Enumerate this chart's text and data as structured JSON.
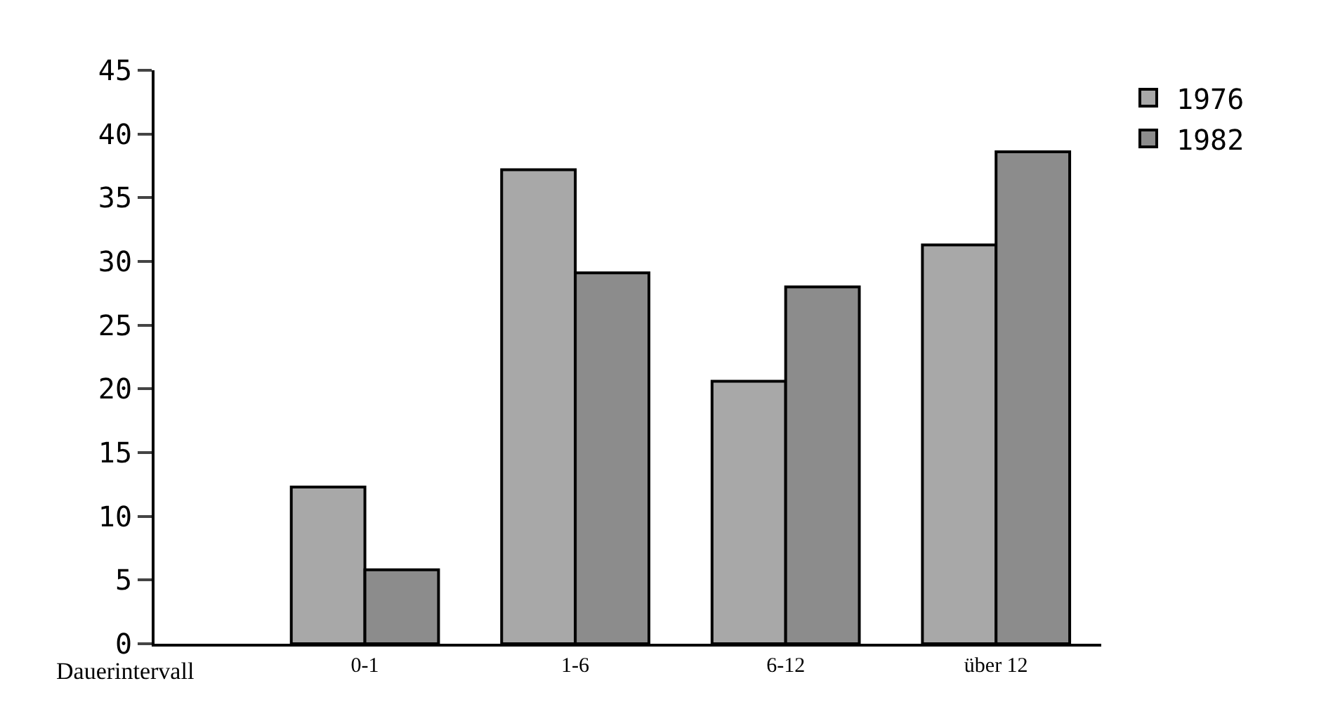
{
  "chart_data": {
    "type": "bar",
    "xlabel": "Dauerintervall",
    "categories": [
      "0-1",
      "1-6",
      "6-12",
      "über 12"
    ],
    "series": [
      {
        "name": "1976",
        "color": "#a8a8a8",
        "values": [
          12.3,
          37.2,
          20.6,
          31.3
        ]
      },
      {
        "name": "1982",
        "color": "#8c8c8c",
        "values": [
          5.8,
          29.1,
          28,
          38.6
        ]
      }
    ],
    "ylim": [
      0,
      45
    ],
    "yticks": [
      0,
      5,
      10,
      15,
      20,
      25,
      30,
      35,
      40,
      45
    ],
    "grid": false,
    "legend": "top right"
  }
}
